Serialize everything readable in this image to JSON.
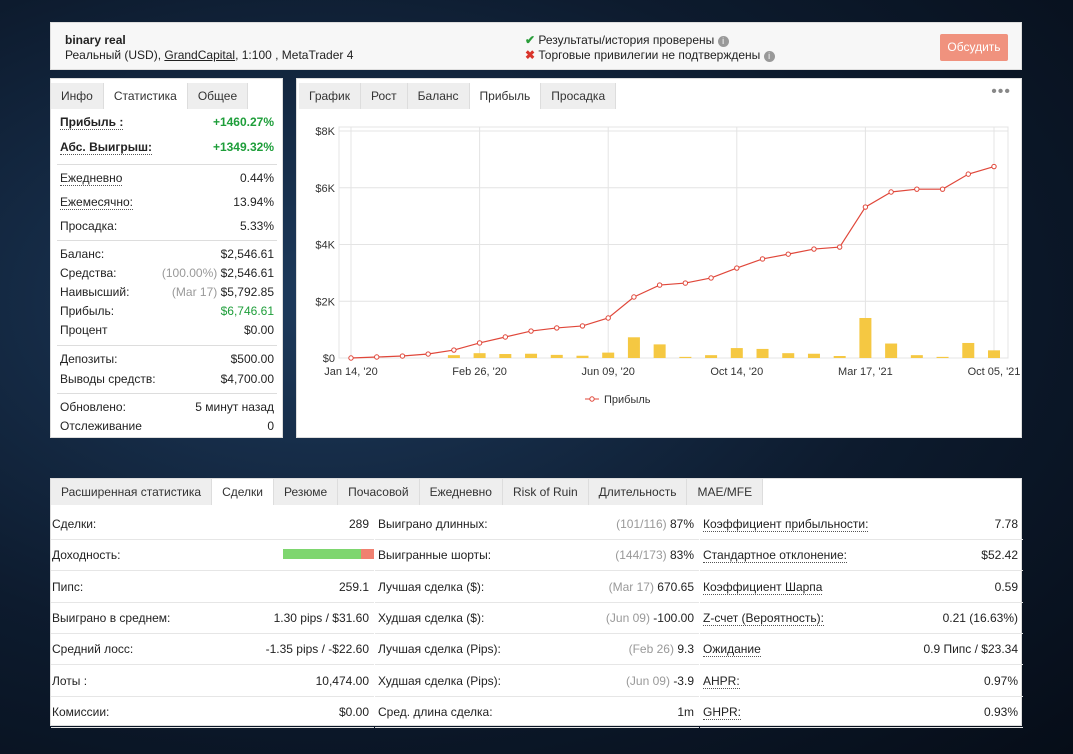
{
  "header": {
    "title": "binary real",
    "subtitle_start": "Реальный (USD), ",
    "broker": "GrandCapital",
    "subtitle_end": ", 1:100 , MetaTrader 4",
    "status_ok": "Результаты/история проверены",
    "status_fail": "Торговые привилегии не подтверждены",
    "button": "Обсудить"
  },
  "left_tabs": {
    "items": [
      "Инфо",
      "Статистика",
      "Общее"
    ],
    "active": 1
  },
  "stats": [
    [
      {
        "label": "Прибыль :",
        "value": "+1460.27%",
        "green": true
      },
      {
        "label": "Абс. Выигрыш:",
        "value": "+1349.32%",
        "green": true
      }
    ],
    [
      {
        "label": "Ежедневно",
        "value": "0.44%"
      },
      {
        "label": "Ежемесячно:",
        "value": "13.94%"
      },
      {
        "label": "Просадка:",
        "value": "5.33%"
      }
    ],
    [
      {
        "label": "Баланс:",
        "value": "$2,546.61"
      },
      {
        "label": "Средства:",
        "note": "(100.00%)",
        "value": "$2,546.61"
      },
      {
        "label": "Наивысший:",
        "note": "(Mar 17)",
        "value": "$5,792.85"
      },
      {
        "label": "Прибыль:",
        "value": "$6,746.61",
        "green": true
      },
      {
        "label": "Процент",
        "value": "$0.00"
      }
    ],
    [
      {
        "label": "Депозиты:",
        "value": "$500.00"
      },
      {
        "label": "Выводы средств:",
        "value": "$4,700.00"
      }
    ],
    [
      {
        "label": "Обновлено:",
        "value": "5 минут назад"
      },
      {
        "label": "Отслеживание",
        "value": "0"
      }
    ]
  ],
  "chart_tabs": {
    "items": [
      "График",
      "Рост",
      "Баланс",
      "Прибыль",
      "Просадка"
    ],
    "active": 3
  },
  "chart": {
    "type": "line",
    "categories": [
      "Jan 14, '20",
      null,
      null,
      null,
      null,
      "Feb 26, '20",
      null,
      null,
      null,
      null,
      "Jun 09, '20",
      null,
      null,
      null,
      null,
      "Oct 14, '20",
      null,
      null,
      null,
      null,
      "Mar 17, '21",
      null,
      null,
      null,
      null,
      "Oct 05, '21"
    ],
    "series": [
      {
        "name": "Прибыль",
        "color": "#e0473a",
        "values": [
          0,
          35,
          70,
          140,
          280,
          530,
          740,
          950,
          1060,
          1130,
          1410,
          2150,
          2570,
          2640,
          2820,
          3170,
          3490,
          3660,
          3840,
          3910,
          5320,
          5850,
          5950,
          5950,
          6480,
          6747
        ]
      }
    ],
    "bar_values": [
      null,
      null,
      null,
      null,
      100,
      170,
      140,
      150,
      110,
      80,
      190,
      730,
      480,
      40,
      100,
      350,
      320,
      170,
      150,
      70,
      1410,
      510,
      100,
      40,
      530,
      270
    ],
    "bar_color": "#f5c842",
    "ylim": [
      0,
      8000
    ],
    "yticks": [
      {
        "value": 0,
        "label": "$0"
      },
      {
        "value": 2000,
        "label": "$2K"
      },
      {
        "value": 4000,
        "label": "$4K"
      },
      {
        "value": 6000,
        "label": "$6K"
      },
      {
        "value": 8000,
        "label": "$8K"
      }
    ],
    "grid": true
  },
  "bottom_tabs": {
    "items": [
      "Расширенная статистика",
      "Сделки",
      "Резюме",
      "Почасовой",
      "Ежедневно",
      "Risk of Ruin",
      "Длительность",
      "MAE/MFE"
    ],
    "active": 1
  },
  "table": [
    [
      {
        "label": "Сделки:",
        "value": "289"
      },
      {
        "label": "Доходность:"
      },
      {
        "label": "Пипс:",
        "value": "259.1"
      },
      {
        "label": "Выиграно в среднем:",
        "value": "1.30 pips / $31.60"
      },
      {
        "label": "Средний лосс:",
        "value": "-1.35 pips / -$22.60"
      },
      {
        "label": "Лоты :",
        "value": "10,474.00"
      },
      {
        "label": "Комиссии:",
        "value": "$0.00"
      }
    ],
    [
      {
        "label": "Выиграно длинных:",
        "note": "(101/116)",
        "value": "87%"
      },
      {
        "label": "Выигранные шорты:",
        "note": "(144/173)",
        "value": "83%"
      },
      {
        "label": "Лучшая сделка ($):",
        "note": "(Mar 17)",
        "value": "670.65"
      },
      {
        "label": "Худшая сделка ($):",
        "note": "(Jun 09)",
        "value": "-100.00"
      },
      {
        "label": "Лучшая сделка (Pips):",
        "note": "(Feb 26)",
        "value": "9.3"
      },
      {
        "label": "Худшая сделка (Pips):",
        "note": "(Jun 09)",
        "value": "-3.9"
      },
      {
        "label": "Сред. длина сделка:",
        "value": "1m"
      }
    ],
    [
      {
        "label": "Коэффициент прибыльности:",
        "value": "7.78"
      },
      {
        "label": "Стандартное отклонение:",
        "value": "$52.42"
      },
      {
        "label": "Коэффициент Шарпа",
        "value": "0.59"
      },
      {
        "label": "Z-счет (Вероятность):",
        "value": "0.21 (16.63%)"
      },
      {
        "label": "Ожидание",
        "value": "0.9 Пипс / $23.34"
      },
      {
        "label": "AHPR:",
        "value": "0.97%"
      },
      {
        "label": "GHPR:",
        "value": "0.93%"
      }
    ]
  ]
}
